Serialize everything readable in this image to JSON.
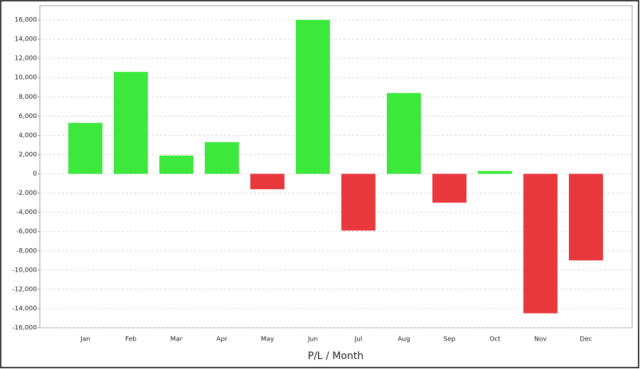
{
  "chart_data": {
    "type": "bar",
    "x_label": "P/L / Month",
    "categories": [
      "Jan",
      "Feb",
      "Mar",
      "Apr",
      "May",
      "Jun",
      "Jul",
      "Aug",
      "Sep",
      "Oct",
      "Nov",
      "Dec"
    ],
    "values": [
      5300,
      10600,
      1900,
      3300,
      -1600,
      16000,
      -5900,
      8400,
      -3000,
      300,
      -14500,
      -9000
    ],
    "positive_color": "#3de83d",
    "negative_color": "#e8383d",
    "ylim": [
      -16000,
      16000
    ],
    "yticks": [
      {
        "value": -16000,
        "label": "-16,000"
      },
      {
        "value": -14000,
        "label": "-14,000"
      },
      {
        "value": -12000,
        "label": "-12,000"
      },
      {
        "value": -10000,
        "label": "-10,000"
      },
      {
        "value": -8000,
        "label": "-8,000"
      },
      {
        "value": -6000,
        "label": "-6,000"
      },
      {
        "value": -4000,
        "label": "-4,000"
      },
      {
        "value": -2000,
        "label": "-2,000"
      },
      0,
      {
        "value": 2000,
        "label": "2,000"
      },
      {
        "value": 4000,
        "label": "4,000"
      },
      {
        "value": 6000,
        "label": "6,000"
      },
      {
        "value": 8000,
        "label": "8,000"
      },
      {
        "value": 10000,
        "label": "10,000"
      },
      {
        "value": 12000,
        "label": "12,000"
      },
      {
        "value": 14000,
        "label": "14,000"
      },
      {
        "value": 16000,
        "label": "16,000"
      }
    ],
    "grid": true
  }
}
